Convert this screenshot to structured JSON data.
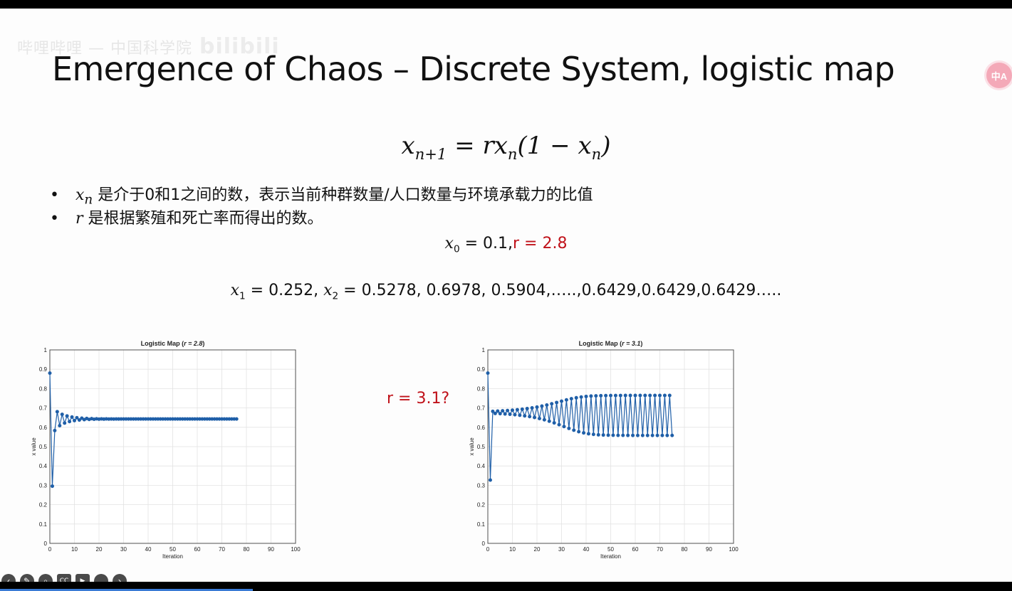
{
  "slide": {
    "watermark": "哔哩哔哩 — 中国科学院",
    "watermark_logo": "bilibili",
    "title": "Emergence of Chaos – Discrete System, logistic map",
    "formula": {
      "x": "x",
      "sub_n1": "n+1",
      "eq": " = rx",
      "sub_n": "n",
      "mid": "(1 − x",
      "sub_n2": "n",
      "end": ")"
    },
    "bullets": [
      {
        "var": "x",
        "sub": "n",
        "text": " 是介于0和1之间的数，表示当前种群数量/人口数量与环境承载力的比值"
      },
      {
        "var": "r",
        "text": " 是根据繁殖和死亡率而得出的数。"
      }
    ],
    "init_eq": {
      "x": "x",
      "sub": "0",
      "val": " = 0.1,",
      "r": "r = 2.8"
    },
    "series_eq": {
      "x1": "x",
      "sub1": "1",
      "v1": " = 0.252, ",
      "x2": "x",
      "sub2": "2",
      "v2": " = 0.5278, 0.6978, 0.5904,…..,0.6429,0.6429,0.6429….."
    },
    "r_question": "r = 3.1?"
  },
  "side_icon": "中A",
  "toolbar": [
    "prev-icon",
    "pen-icon",
    "search-icon",
    "cc-icon",
    "camera-off-icon",
    "more-icon",
    "next-icon"
  ],
  "chart_data": [
    {
      "type": "line",
      "title_prefix": "Logistic Map (",
      "title_italic": "r = 2.8",
      "title_suffix": ")",
      "xlabel": "Iteration",
      "ylabel": "x value",
      "xlim": [
        0,
        100
      ],
      "ylim": [
        0,
        1
      ],
      "xticks": [
        0,
        10,
        20,
        30,
        40,
        50,
        60,
        70,
        80,
        90,
        100
      ],
      "yticks": [
        0,
        0.1,
        0.2,
        0.3,
        0.4,
        0.5,
        0.6,
        0.7,
        0.8,
        0.9,
        1
      ],
      "grid": true,
      "color": "#1f5fa8",
      "r": 2.8,
      "x0": 0.88,
      "n": 77
    },
    {
      "type": "line",
      "title_prefix": "Logistic Map (",
      "title_italic": "r = 3.1",
      "title_suffix": ")",
      "xlabel": "Iteration",
      "ylabel": "x value",
      "xlim": [
        0,
        100
      ],
      "ylim": [
        0,
        1
      ],
      "xticks": [
        0,
        10,
        20,
        30,
        40,
        50,
        60,
        70,
        80,
        90,
        100
      ],
      "yticks": [
        0,
        0.1,
        0.2,
        0.3,
        0.4,
        0.5,
        0.6,
        0.7,
        0.8,
        0.9,
        1
      ],
      "grid": true,
      "color": "#1f5fa8",
      "r": 3.1,
      "x0": 0.88,
      "n": 76
    }
  ]
}
